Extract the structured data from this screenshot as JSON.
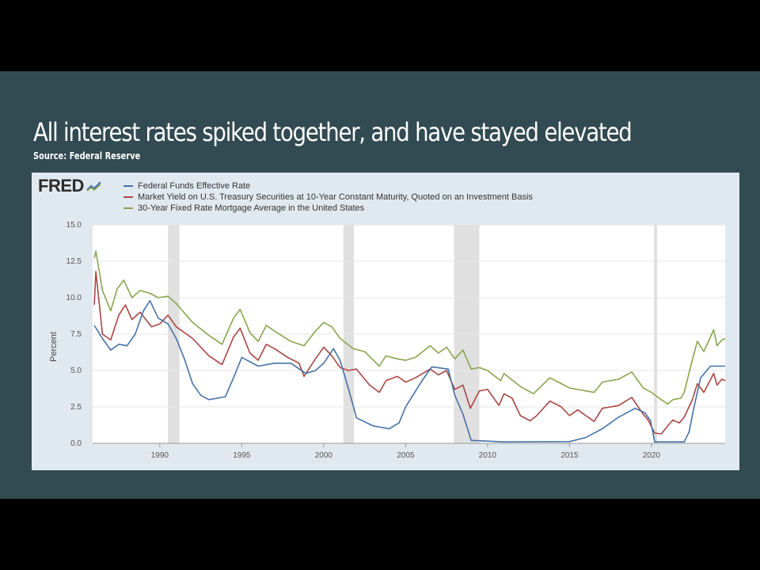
{
  "slide": {
    "title": "All interest rates spiked together, and have stayed elevated",
    "source": "Source: Federal Reserve"
  },
  "logo": {
    "text": "FRED"
  },
  "chart_data": {
    "type": "line",
    "ylabel": "Percent",
    "ylim": [
      0,
      15
    ],
    "xlim": [
      1985.9,
      2024.5
    ],
    "yticks": [
      "0.0",
      "2.5",
      "5.0",
      "7.5",
      "10.0",
      "12.5",
      "15.0"
    ],
    "xticks": [
      "1990",
      "1995",
      "2000",
      "2005",
      "2010",
      "2015",
      "2020"
    ],
    "grid": "horizontal",
    "legend_position": "top-left",
    "recessions": [
      [
        1990.5,
        1991.2
      ],
      [
        2001.2,
        2001.85
      ],
      [
        2007.95,
        2009.5
      ],
      [
        2020.15,
        2020.35
      ]
    ],
    "series": [
      {
        "name": "Federal Funds Effective Rate",
        "color": "#4572a7",
        "points": [
          [
            1986.0,
            8.1
          ],
          [
            1986.5,
            7.2
          ],
          [
            1987.0,
            6.4
          ],
          [
            1987.5,
            6.8
          ],
          [
            1988.0,
            6.7
          ],
          [
            1988.5,
            7.5
          ],
          [
            1989.0,
            9.1
          ],
          [
            1989.4,
            9.8
          ],
          [
            1989.9,
            8.6
          ],
          [
            1990.5,
            8.2
          ],
          [
            1991.0,
            7.2
          ],
          [
            1991.5,
            5.8
          ],
          [
            1992.0,
            4.1
          ],
          [
            1992.5,
            3.3
          ],
          [
            1993.0,
            3.0
          ],
          [
            1994.0,
            3.2
          ],
          [
            1994.5,
            4.5
          ],
          [
            1995.0,
            5.9
          ],
          [
            1996.0,
            5.3
          ],
          [
            1997.0,
            5.5
          ],
          [
            1998.0,
            5.5
          ],
          [
            1998.9,
            4.8
          ],
          [
            1999.5,
            5.0
          ],
          [
            2000.0,
            5.5
          ],
          [
            2000.6,
            6.5
          ],
          [
            2001.0,
            5.7
          ],
          [
            2001.5,
            3.8
          ],
          [
            2002.0,
            1.75
          ],
          [
            2003.0,
            1.2
          ],
          [
            2004.0,
            1.0
          ],
          [
            2004.6,
            1.4
          ],
          [
            2005.0,
            2.5
          ],
          [
            2006.0,
            4.3
          ],
          [
            2006.6,
            5.25
          ],
          [
            2007.6,
            5.1
          ],
          [
            2008.0,
            3.3
          ],
          [
            2008.5,
            2.0
          ],
          [
            2009.0,
            0.2
          ],
          [
            2010.0,
            0.15
          ],
          [
            2011.0,
            0.1
          ],
          [
            2015.0,
            0.12
          ],
          [
            2016.0,
            0.4
          ],
          [
            2017.0,
            1.0
          ],
          [
            2018.0,
            1.8
          ],
          [
            2019.0,
            2.4
          ],
          [
            2019.6,
            2.1
          ],
          [
            2019.95,
            1.55
          ],
          [
            2020.2,
            0.1
          ],
          [
            2022.0,
            0.1
          ],
          [
            2022.3,
            0.8
          ],
          [
            2022.6,
            2.5
          ],
          [
            2023.0,
            4.5
          ],
          [
            2023.6,
            5.3
          ],
          [
            2024.5,
            5.3
          ]
        ]
      },
      {
        "name": "Market Yield on U.S. Treasury Securities at 10-Year Constant Maturity, Quoted on an Investment Basis",
        "color": "#aa4643",
        "points": [
          [
            1986.0,
            9.5
          ],
          [
            1986.1,
            11.8
          ],
          [
            1986.5,
            7.5
          ],
          [
            1987.0,
            7.1
          ],
          [
            1987.5,
            8.8
          ],
          [
            1987.9,
            9.5
          ],
          [
            1988.3,
            8.5
          ],
          [
            1988.8,
            9.0
          ],
          [
            1989.5,
            8.0
          ],
          [
            1990.0,
            8.2
          ],
          [
            1990.5,
            8.8
          ],
          [
            1991.0,
            8.0
          ],
          [
            1992.0,
            7.2
          ],
          [
            1993.0,
            6.0
          ],
          [
            1993.8,
            5.4
          ],
          [
            1994.5,
            7.3
          ],
          [
            1994.9,
            7.9
          ],
          [
            1995.5,
            6.2
          ],
          [
            1996.0,
            5.7
          ],
          [
            1996.5,
            6.8
          ],
          [
            1997.0,
            6.5
          ],
          [
            1997.8,
            5.9
          ],
          [
            1998.5,
            5.5
          ],
          [
            1998.8,
            4.6
          ],
          [
            1999.5,
            5.8
          ],
          [
            2000.0,
            6.6
          ],
          [
            2000.5,
            6.0
          ],
          [
            2001.0,
            5.2
          ],
          [
            2001.5,
            5.0
          ],
          [
            2002.0,
            5.1
          ],
          [
            2002.8,
            4.0
          ],
          [
            2003.4,
            3.5
          ],
          [
            2003.8,
            4.3
          ],
          [
            2004.5,
            4.6
          ],
          [
            2005.0,
            4.2
          ],
          [
            2005.6,
            4.5
          ],
          [
            2006.5,
            5.1
          ],
          [
            2007.0,
            4.7
          ],
          [
            2007.5,
            5.0
          ],
          [
            2008.0,
            3.7
          ],
          [
            2008.5,
            4.0
          ],
          [
            2008.95,
            2.4
          ],
          [
            2009.5,
            3.6
          ],
          [
            2010.0,
            3.7
          ],
          [
            2010.7,
            2.6
          ],
          [
            2011.0,
            3.4
          ],
          [
            2011.5,
            3.1
          ],
          [
            2012.0,
            1.9
          ],
          [
            2012.6,
            1.55
          ],
          [
            2013.0,
            1.9
          ],
          [
            2013.8,
            2.9
          ],
          [
            2014.5,
            2.5
          ],
          [
            2015.0,
            1.9
          ],
          [
            2015.5,
            2.3
          ],
          [
            2016.5,
            1.5
          ],
          [
            2017.0,
            2.4
          ],
          [
            2018.0,
            2.6
          ],
          [
            2018.8,
            3.15
          ],
          [
            2019.5,
            2.0
          ],
          [
            2019.8,
            1.6
          ],
          [
            2020.2,
            0.7
          ],
          [
            2020.6,
            0.65
          ],
          [
            2021.0,
            1.2
          ],
          [
            2021.3,
            1.6
          ],
          [
            2021.7,
            1.4
          ],
          [
            2022.0,
            1.8
          ],
          [
            2022.5,
            3.0
          ],
          [
            2022.8,
            4.1
          ],
          [
            2023.2,
            3.5
          ],
          [
            2023.8,
            4.8
          ],
          [
            2024.0,
            4.0
          ],
          [
            2024.3,
            4.4
          ],
          [
            2024.5,
            4.3
          ]
        ]
      },
      {
        "name": "30-Year Fixed Rate Mortgage Average in the United States",
        "color": "#89a54e",
        "points": [
          [
            1986.0,
            12.7
          ],
          [
            1986.1,
            13.2
          ],
          [
            1986.5,
            10.5
          ],
          [
            1987.0,
            9.1
          ],
          [
            1987.4,
            10.6
          ],
          [
            1987.8,
            11.2
          ],
          [
            1988.3,
            10.0
          ],
          [
            1988.8,
            10.5
          ],
          [
            1989.4,
            10.3
          ],
          [
            1989.9,
            10.0
          ],
          [
            1990.5,
            10.1
          ],
          [
            1991.0,
            9.6
          ],
          [
            1992.0,
            8.3
          ],
          [
            1993.0,
            7.4
          ],
          [
            1993.8,
            6.8
          ],
          [
            1994.5,
            8.6
          ],
          [
            1994.9,
            9.2
          ],
          [
            1995.5,
            7.6
          ],
          [
            1996.0,
            7.0
          ],
          [
            1996.5,
            8.1
          ],
          [
            1997.0,
            7.7
          ],
          [
            1998.0,
            7.0
          ],
          [
            1998.8,
            6.7
          ],
          [
            1999.5,
            7.7
          ],
          [
            2000.0,
            8.3
          ],
          [
            2000.5,
            8.0
          ],
          [
            2001.0,
            7.2
          ],
          [
            2001.8,
            6.5
          ],
          [
            2002.5,
            6.3
          ],
          [
            2003.4,
            5.3
          ],
          [
            2003.8,
            6.0
          ],
          [
            2004.5,
            5.8
          ],
          [
            2005.0,
            5.7
          ],
          [
            2005.6,
            5.9
          ],
          [
            2006.5,
            6.7
          ],
          [
            2007.0,
            6.2
          ],
          [
            2007.5,
            6.6
          ],
          [
            2008.0,
            5.8
          ],
          [
            2008.5,
            6.4
          ],
          [
            2009.0,
            5.1
          ],
          [
            2009.5,
            5.2
          ],
          [
            2010.0,
            5.0
          ],
          [
            2010.8,
            4.3
          ],
          [
            2011.0,
            4.8
          ],
          [
            2012.0,
            3.9
          ],
          [
            2012.8,
            3.4
          ],
          [
            2013.8,
            4.5
          ],
          [
            2014.5,
            4.1
          ],
          [
            2015.0,
            3.8
          ],
          [
            2016.0,
            3.6
          ],
          [
            2016.5,
            3.5
          ],
          [
            2017.0,
            4.2
          ],
          [
            2018.0,
            4.4
          ],
          [
            2018.8,
            4.9
          ],
          [
            2019.5,
            3.8
          ],
          [
            2020.0,
            3.5
          ],
          [
            2020.6,
            3.0
          ],
          [
            2021.0,
            2.7
          ],
          [
            2021.3,
            3.0
          ],
          [
            2021.8,
            3.1
          ],
          [
            2022.0,
            3.5
          ],
          [
            2022.4,
            5.3
          ],
          [
            2022.8,
            7.0
          ],
          [
            2023.2,
            6.3
          ],
          [
            2023.8,
            7.8
          ],
          [
            2024.0,
            6.7
          ],
          [
            2024.3,
            7.1
          ],
          [
            2024.5,
            7.2
          ]
        ]
      }
    ]
  }
}
